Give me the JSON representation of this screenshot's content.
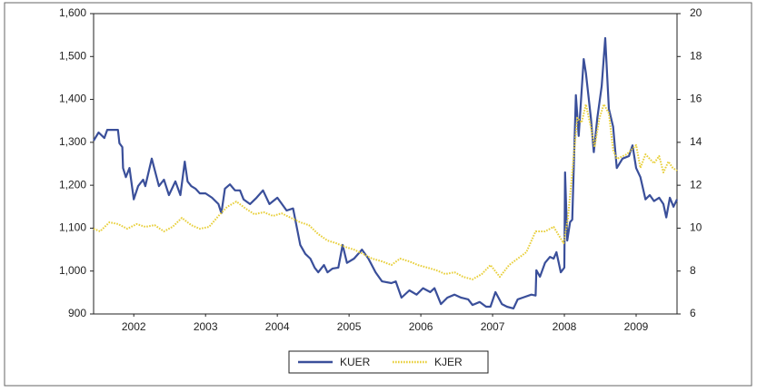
{
  "chart_data": {
    "type": "line",
    "xlim": [
      2001.94,
      2010.07
    ],
    "xticks": [
      {
        "value": 2002.5,
        "label": "2002"
      },
      {
        "value": 2003.5,
        "label": "2003"
      },
      {
        "value": 2004.5,
        "label": "2004"
      },
      {
        "value": 2005.5,
        "label": "2005"
      },
      {
        "value": 2006.5,
        "label": "2006"
      },
      {
        "value": 2007.5,
        "label": "2007"
      },
      {
        "value": 2008.5,
        "label": "2008"
      },
      {
        "value": 2009.5,
        "label": "2009"
      }
    ],
    "ylim": [
      900,
      1600
    ],
    "yticks": [
      {
        "value": 900,
        "label": "900"
      },
      {
        "value": 1000,
        "label": "1,000"
      },
      {
        "value": 1100,
        "label": "1,100"
      },
      {
        "value": 1200,
        "label": "1,200"
      },
      {
        "value": 1300,
        "label": "1,300"
      },
      {
        "value": 1400,
        "label": "1,400"
      },
      {
        "value": 1500,
        "label": "1,500"
      },
      {
        "value": 1600,
        "label": "1,600"
      }
    ],
    "y2lim": [
      6,
      20
    ],
    "y2ticks": [
      6,
      8,
      10,
      12,
      14,
      16,
      18,
      20
    ],
    "legend": "bottom",
    "series": [
      {
        "name": "KUER",
        "color": "#3a4f9a",
        "line_style": "solid",
        "x": [
          2001.94,
          2002.01,
          2002.09,
          2002.13,
          2002.18,
          2002.28,
          2002.3,
          2002.34,
          2002.35,
          2002.39,
          2002.44,
          2002.5,
          2002.56,
          2002.63,
          2002.66,
          2002.75,
          2002.85,
          2002.92,
          2002.99,
          2003.08,
          2003.15,
          2003.21,
          2003.25,
          2003.3,
          2003.36,
          2003.42,
          2003.5,
          2003.59,
          2003.68,
          2003.72,
          2003.77,
          2003.84,
          2003.91,
          2003.98,
          2004.03,
          2004.12,
          2004.21,
          2004.3,
          2004.39,
          2004.5,
          2004.63,
          2004.72,
          2004.82,
          2004.89,
          2004.96,
          2005.02,
          2005.07,
          2005.15,
          2005.2,
          2005.27,
          2005.35,
          2005.41,
          2005.47,
          2005.57,
          2005.68,
          2005.77,
          2005.87,
          2005.96,
          2006.09,
          2006.15,
          2006.23,
          2006.34,
          2006.44,
          2006.53,
          2006.63,
          2006.69,
          2006.78,
          2006.87,
          2006.97,
          2007.06,
          2007.16,
          2007.22,
          2007.32,
          2007.41,
          2007.47,
          2007.54,
          2007.63,
          2007.7,
          2007.79,
          2007.85,
          2007.92,
          2008.04,
          2008.1,
          2008.11,
          2008.16,
          2008.23,
          2008.3,
          2008.35,
          2008.39,
          2008.45,
          2008.5,
          2008.51,
          2008.54,
          2008.58,
          2008.61,
          2008.66,
          2008.7,
          2008.77,
          2008.8,
          2008.87,
          2008.91,
          2008.96,
          2009.02,
          2009.07,
          2009.12,
          2009.18,
          2009.23,
          2009.31,
          2009.4,
          2009.45,
          2009.5,
          2009.56,
          2009.63,
          2009.69,
          2009.75,
          2009.82,
          2009.88,
          2009.92,
          2009.97,
          2010.02,
          2010.07
        ],
        "values": [
          1304,
          1323,
          1310,
          1329,
          1329,
          1329,
          1298,
          1289,
          1240,
          1219,
          1240,
          1167,
          1198,
          1213,
          1198,
          1262,
          1198,
          1213,
          1177,
          1209,
          1177,
          1255,
          1209,
          1198,
          1192,
          1181,
          1181,
          1171,
          1156,
          1135,
          1192,
          1202,
          1188,
          1188,
          1167,
          1156,
          1171,
          1188,
          1156,
          1171,
          1141,
          1146,
          1061,
          1040,
          1029,
          1008,
          997,
          1014,
          997,
          1006,
          1008,
          1061,
          1019,
          1029,
          1050,
          1029,
          997,
          976,
          972,
          976,
          938,
          955,
          945,
          960,
          951,
          960,
          923,
          938,
          945,
          938,
          934,
          921,
          928,
          917,
          917,
          951,
          923,
          917,
          913,
          934,
          938,
          945,
          943,
          1002,
          987,
          1019,
          1033,
          1029,
          1044,
          997,
          1008,
          1230,
          1071,
          1114,
          1120,
          1410,
          1315,
          1494,
          1462,
          1357,
          1277,
          1357,
          1431,
          1543,
          1378,
          1336,
          1240,
          1262,
          1268,
          1293,
          1240,
          1219,
          1167,
          1177,
          1163,
          1171,
          1156,
          1125,
          1171,
          1150,
          1167
        ]
      },
      {
        "name": "KJER",
        "color": "#e8cf3a",
        "line_style": "dotted",
        "axis": "y2",
        "x": [
          2001.94,
          2002.03,
          2002.16,
          2002.28,
          2002.41,
          2002.54,
          2002.66,
          2002.79,
          2002.92,
          2003.04,
          2003.17,
          2003.3,
          2003.42,
          2003.55,
          2003.68,
          2003.8,
          2003.93,
          2004.06,
          2004.18,
          2004.31,
          2004.44,
          2004.56,
          2004.69,
          2004.82,
          2004.94,
          2005.07,
          2005.2,
          2005.32,
          2005.44,
          2005.57,
          2005.7,
          2005.82,
          2005.96,
          2006.09,
          2006.21,
          2006.34,
          2006.46,
          2006.59,
          2006.72,
          2006.84,
          2006.97,
          2007.09,
          2007.22,
          2007.35,
          2007.47,
          2007.6,
          2007.73,
          2007.85,
          2007.97,
          2008.1,
          2008.23,
          2008.35,
          2008.49,
          2008.55,
          2008.61,
          2008.68,
          2008.74,
          2008.8,
          2008.87,
          2008.92,
          2008.99,
          2009.05,
          2009.12,
          2009.18,
          2009.23,
          2009.37,
          2009.5,
          2009.56,
          2009.63,
          2009.75,
          2009.82,
          2009.88,
          2009.95,
          2010.01,
          2010.07
        ],
        "values": [
          9.97,
          9.85,
          10.27,
          10.19,
          9.97,
          10.19,
          10.06,
          10.14,
          9.85,
          10.06,
          10.48,
          10.14,
          9.97,
          10.06,
          10.57,
          10.99,
          11.24,
          10.91,
          10.65,
          10.74,
          10.57,
          10.69,
          10.48,
          10.27,
          10.14,
          9.72,
          9.42,
          9.3,
          9.13,
          9.0,
          8.79,
          8.58,
          8.45,
          8.28,
          8.58,
          8.45,
          8.28,
          8.16,
          8.03,
          7.86,
          7.94,
          7.73,
          7.61,
          7.86,
          8.28,
          7.73,
          8.28,
          8.58,
          8.88,
          9.85,
          9.85,
          10.06,
          9.3,
          10.48,
          12.6,
          15.14,
          14.92,
          15.77,
          14.71,
          13.78,
          15.14,
          15.77,
          15.35,
          13.65,
          13.23,
          13.44,
          13.87,
          12.81,
          13.44,
          13.02,
          13.36,
          12.6,
          13.1,
          12.81,
          12.68
        ]
      }
    ]
  }
}
